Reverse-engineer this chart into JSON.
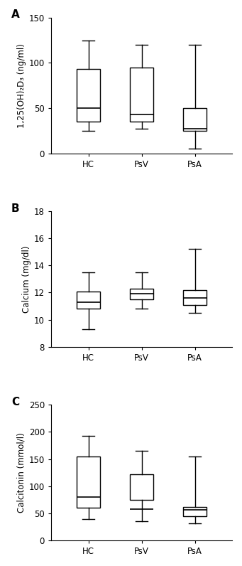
{
  "panels": [
    {
      "label": "A",
      "ylabel": "1,25(OH)₂D₃ (ng/ml)",
      "ylim": [
        0,
        150
      ],
      "yticks": [
        0,
        50,
        100,
        150
      ],
      "groups": [
        "HC",
        "PsV",
        "PsA"
      ],
      "whislo": [
        25,
        27,
        5
      ],
      "q1": [
        35,
        35,
        25
      ],
      "median": [
        50,
        43,
        27
      ],
      "q3": [
        93,
        95,
        50
      ],
      "whishi": [
        125,
        120,
        120
      ]
    },
    {
      "label": "B",
      "ylabel": "Calcium (mg/dl)",
      "ylim": [
        8,
        18
      ],
      "yticks": [
        8,
        10,
        12,
        14,
        16,
        18
      ],
      "groups": [
        "HC",
        "PsV",
        "PsA"
      ],
      "whislo": [
        9.3,
        10.8,
        10.5
      ],
      "q1": [
        10.8,
        11.5,
        11.1
      ],
      "median": [
        11.3,
        11.9,
        11.6
      ],
      "q3": [
        12.1,
        12.3,
        12.2
      ],
      "whishi": [
        13.5,
        13.5,
        15.2
      ]
    },
    {
      "label": "C",
      "ylabel": "Calcitonin (mmol/l)",
      "ylim": [
        0,
        250
      ],
      "yticks": [
        0,
        50,
        100,
        150,
        200,
        250
      ],
      "groups": [
        "HC",
        "PsV",
        "PsA"
      ],
      "whislo": [
        40,
        35,
        32
      ],
      "q1": [
        60,
        75,
        45
      ],
      "median": [
        80,
        58,
        57
      ],
      "q3": [
        155,
        122,
        62
      ],
      "whishi": [
        193,
        165,
        155
      ]
    }
  ],
  "box_color": "#ffffff",
  "box_edgecolor": "#000000",
  "linewidth": 1.0,
  "whisker_linewidth": 1.0,
  "median_linewidth": 1.2,
  "box_width": 0.45,
  "label_fontsize": 8.5,
  "tick_fontsize": 8.5,
  "panel_label_fontsize": 11,
  "figsize": [
    3.41,
    7.96
  ],
  "dpi": 100
}
